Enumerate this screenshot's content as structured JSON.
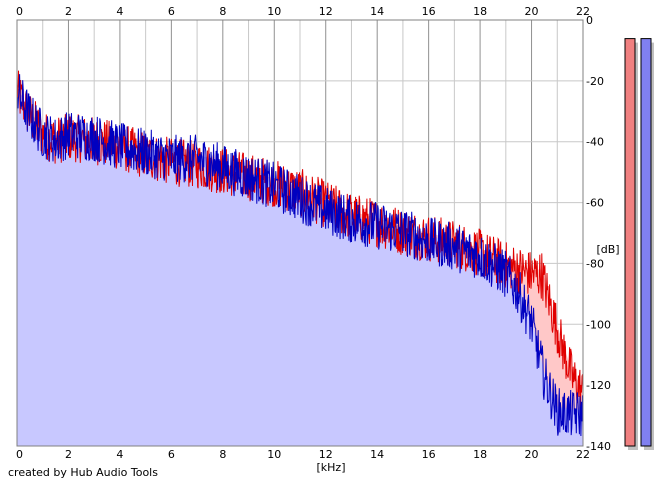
{
  "credit_text": "created by Hub Audio Tools",
  "colors": {
    "background": "#ffffff",
    "grid": "#c8c8c8",
    "grid_major": "#909090",
    "fill_red": "#ffc8c8",
    "fill_blue": "#c8c8ff",
    "line_red": "#e00000",
    "line_blue": "#0000c0",
    "meter_red": "#f08080",
    "meter_blue": "#8080f0",
    "meter_shadow": "#c0c0c0"
  },
  "chart_data": {
    "type": "area",
    "title": "",
    "xlabel": "[kHz]",
    "ylabel": "[dB]",
    "xlim": [
      0,
      22
    ],
    "ylim": [
      -140,
      0
    ],
    "grid": true,
    "x_ticks": [
      "0",
      "2",
      "4",
      "6",
      "8",
      "10",
      "12",
      "14",
      "16",
      "18",
      "20",
      "22"
    ],
    "y_ticks": [
      "0",
      "-20",
      "-40",
      "-60",
      "-80",
      "-100",
      "-120",
      "-140"
    ],
    "series": [
      {
        "color": "red",
        "x": [
          0,
          0.5,
          1,
          1.5,
          2,
          3,
          4,
          5,
          6,
          7,
          8,
          9,
          10,
          11,
          12,
          13,
          14,
          15,
          16,
          17,
          18,
          19,
          20,
          20.4,
          20.8,
          21.2,
          21.6,
          22
        ],
        "values": [
          -22,
          -30,
          -36,
          -38,
          -37,
          -38,
          -40,
          -43,
          -45,
          -46,
          -48,
          -50,
          -52,
          -55,
          -59,
          -63,
          -65,
          -68,
          -70,
          -72,
          -75,
          -79,
          -82,
          -82,
          -94,
          -106,
          -116,
          -121
        ]
      },
      {
        "color": "blue",
        "x": [
          0,
          0.5,
          1,
          1.5,
          2,
          3,
          4,
          5,
          6,
          7,
          8,
          9,
          10,
          11,
          12,
          13,
          14,
          15,
          16,
          17,
          18,
          19,
          19.5,
          20,
          20.5,
          21,
          21.5,
          22
        ],
        "values": [
          -22,
          -30,
          -36,
          -38,
          -36,
          -37,
          -40,
          -42,
          -44,
          -44,
          -47,
          -50,
          -53,
          -57,
          -61,
          -64,
          -66,
          -68,
          -71,
          -73,
          -76,
          -82,
          -88,
          -98,
          -116,
          -127,
          -128,
          -128
        ]
      }
    ],
    "level_meters": [
      {
        "color": "red",
        "level": 0.97
      },
      {
        "color": "blue",
        "level": 0.97
      }
    ]
  }
}
